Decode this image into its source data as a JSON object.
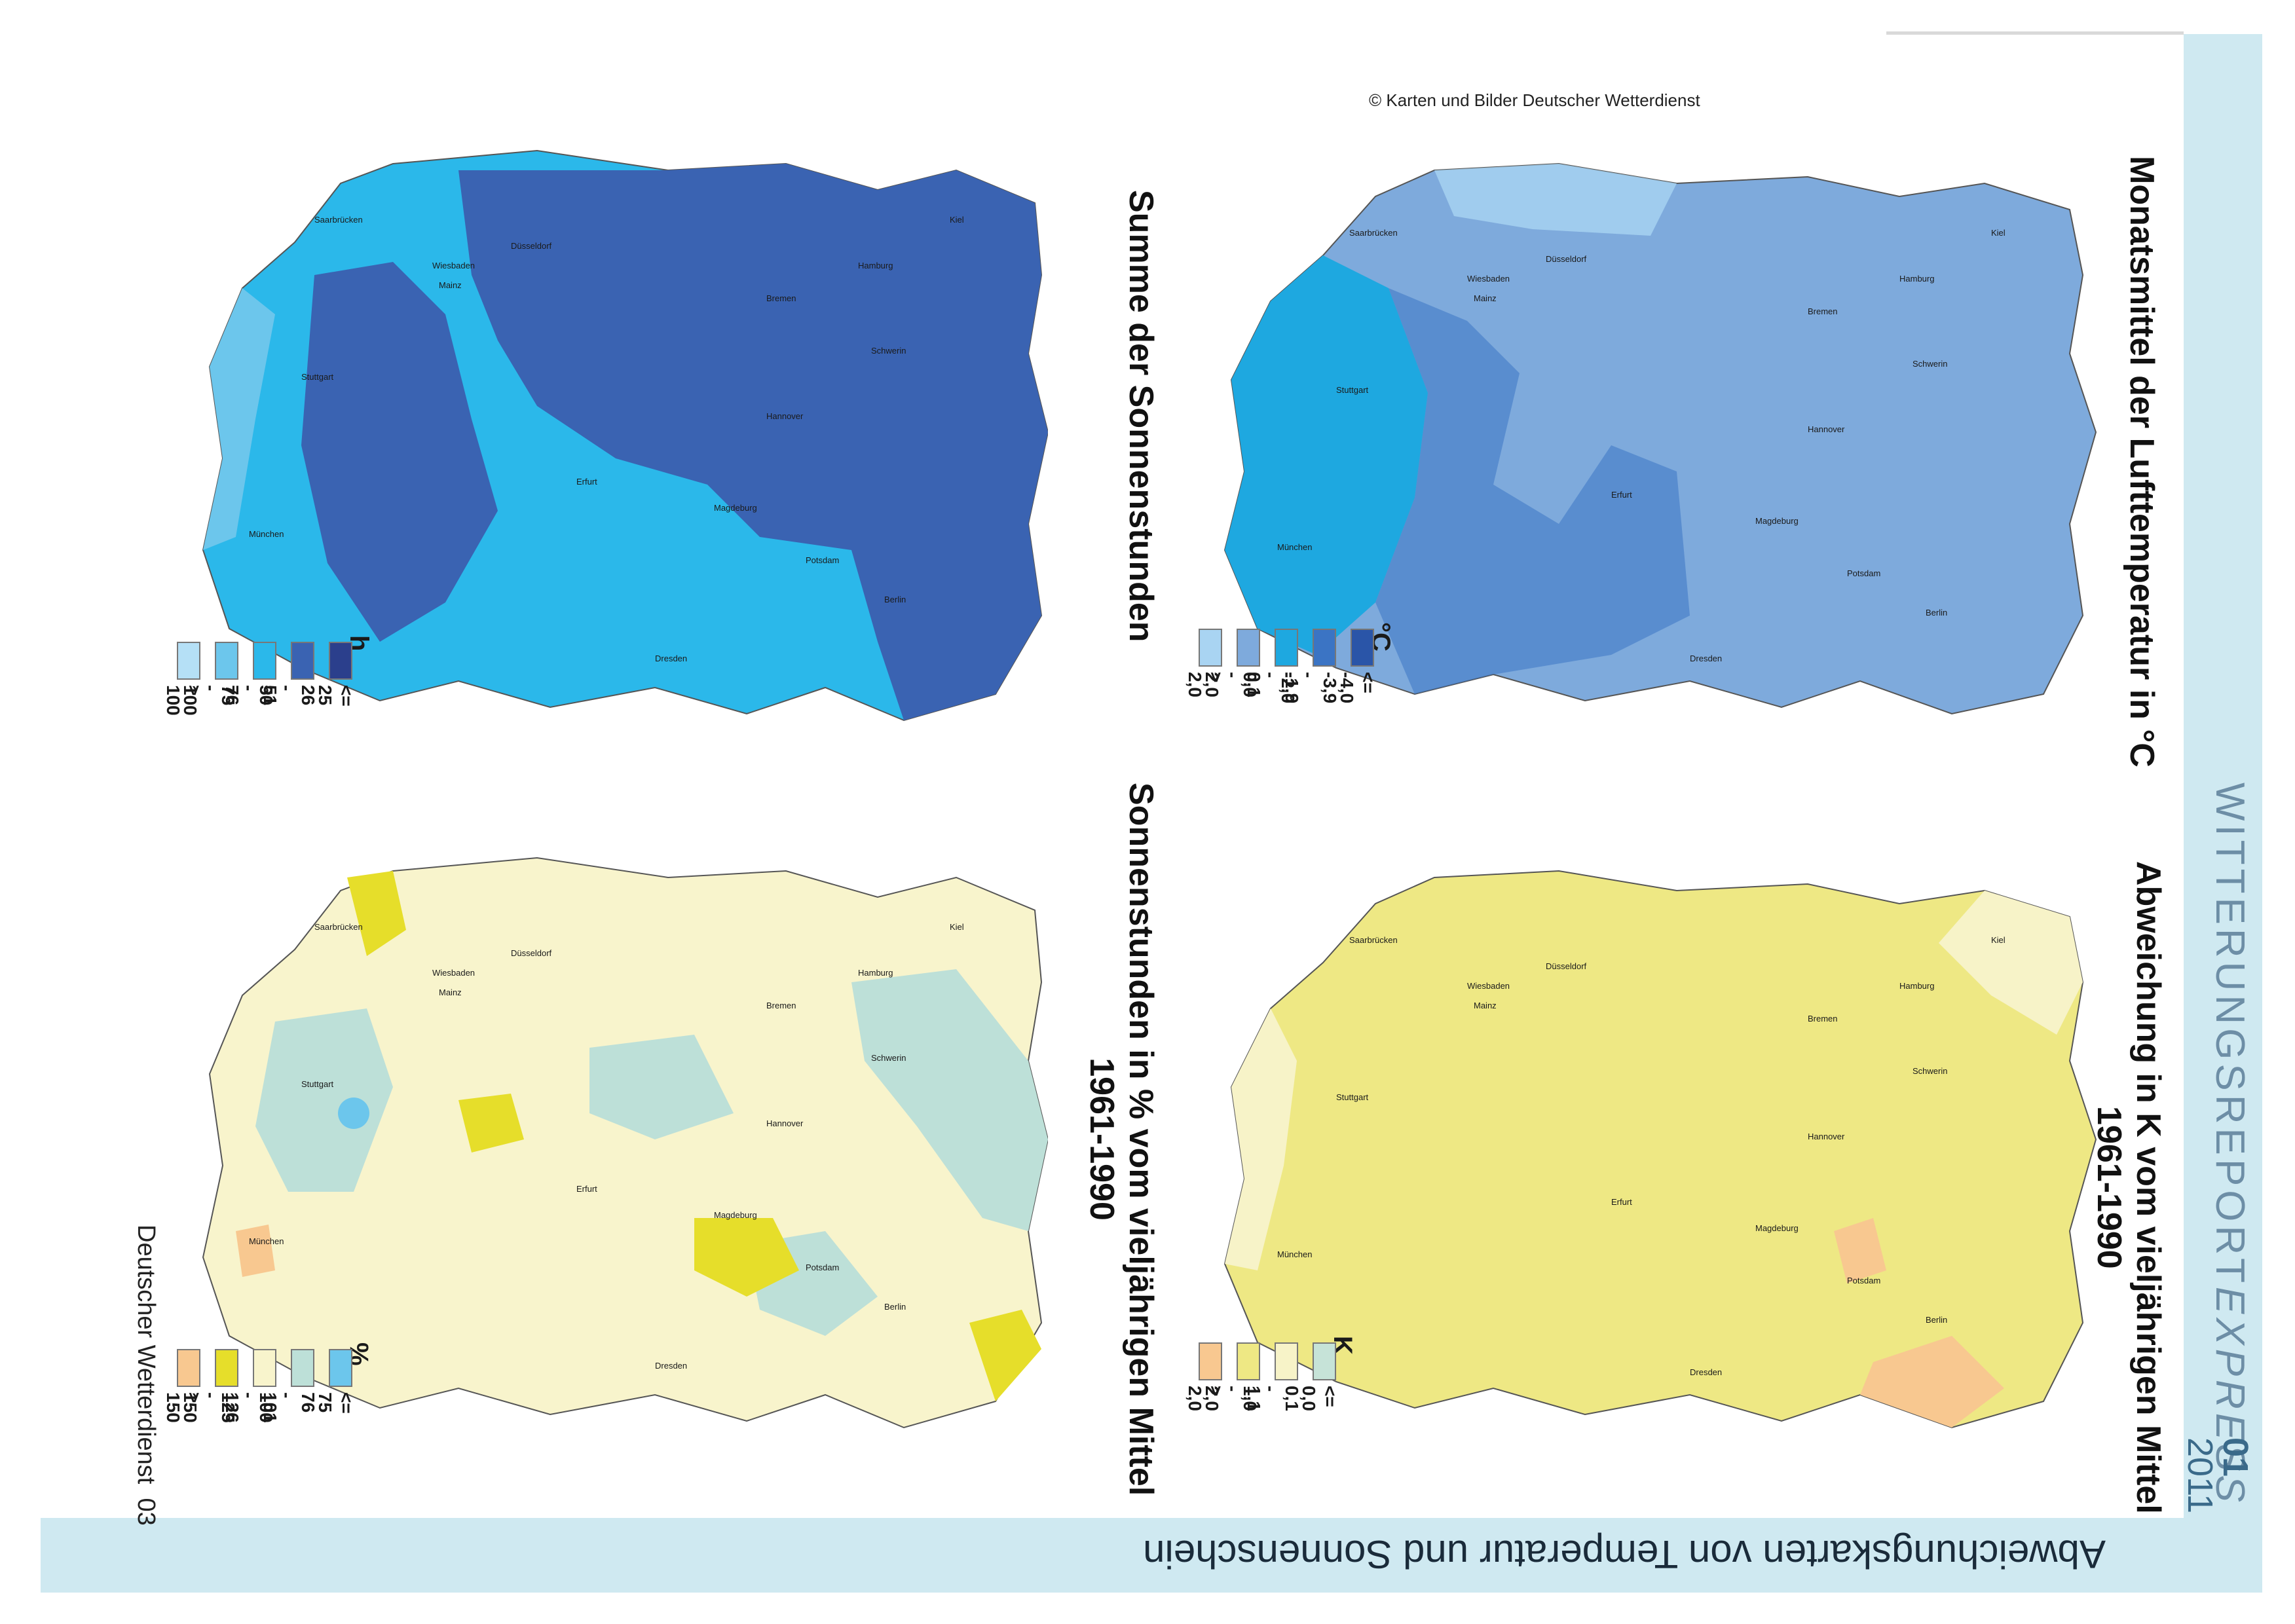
{
  "page": {
    "copyright": "© Karten und Bilder Deutscher Wetterdienst",
    "footer_text": "Deutscher Wetterdienst",
    "page_number": "03",
    "bottom_title": "Abweichungskarten von Temperatur und Sonnenschein",
    "series_prefix": "WITTERUNGSREPORT",
    "series_suffix": "EXPRESS",
    "issue_number": "01",
    "issue_year": "2011"
  },
  "maps": [
    {
      "id": "temperature",
      "title_line1": "Monatsmittel der Lufttemperatur in °C",
      "title_line2": "",
      "unit": "°C",
      "legend": [
        {
          "label": "<= -4,0",
          "color": "#2a55a8"
        },
        {
          "label": "-3,9 - -2,0",
          "color": "#3b74c4"
        },
        {
          "label": "-1,9 - 0,0",
          "color": "#1ea8e0"
        },
        {
          "label": "0,1 - 2,0",
          "color": "#7eaadc"
        },
        {
          "label": "> 2,0",
          "color": "#a9d4f2"
        }
      ]
    },
    {
      "id": "temp-anomaly",
      "title_line1": "Abweichung in K vom vieljährigen Mittel",
      "title_line2": "1961-1990",
      "unit": "K",
      "legend": [
        {
          "label": "<= 0,0",
          "color": "#c6e3d8"
        },
        {
          "label": "0,1 - 1,0",
          "color": "#f7f3c8"
        },
        {
          "label": "1,1 - 2,0",
          "color": "#eee884"
        },
        {
          "label": "> 2,0",
          "color": "#f8c890"
        }
      ]
    },
    {
      "id": "sunshine",
      "title_line1": "Summe der Sonnenstunden",
      "title_line2": "",
      "unit": "h",
      "legend": [
        {
          "label": "<= 25",
          "color": "#2b3f8c"
        },
        {
          "label": "26 - 50",
          "color": "#3a63b2"
        },
        {
          "label": "51 - 75",
          "color": "#2bb8ea"
        },
        {
          "label": "76 - 100",
          "color": "#6cc6ec"
        },
        {
          "label": "> 100",
          "color": "#b5e0f6"
        }
      ]
    },
    {
      "id": "sun-anomaly",
      "title_line1": "Sonnenstunden in % vom vieljährigen Mittel",
      "title_line2": "1961-1990",
      "unit": "%",
      "legend": [
        {
          "label": "<= 75",
          "color": "#6cc6ec"
        },
        {
          "label": "76 - 100",
          "color": "#bde0d8"
        },
        {
          "label": "101 - 125",
          "color": "#f8f4cc"
        },
        {
          "label": "126 - 150",
          "color": "#e6de2a"
        },
        {
          "label": "> 150",
          "color": "#f8c890"
        }
      ]
    }
  ],
  "cities": [
    "Kiel",
    "Hamburg",
    "Schwerin",
    "Bremen",
    "Hannover",
    "Berlin",
    "Potsdam",
    "Magdeburg",
    "Düsseldorf",
    "Erfurt",
    "Dresden",
    "Wiesbaden",
    "Mainz",
    "Saarbrücken",
    "Stuttgart",
    "München"
  ]
}
